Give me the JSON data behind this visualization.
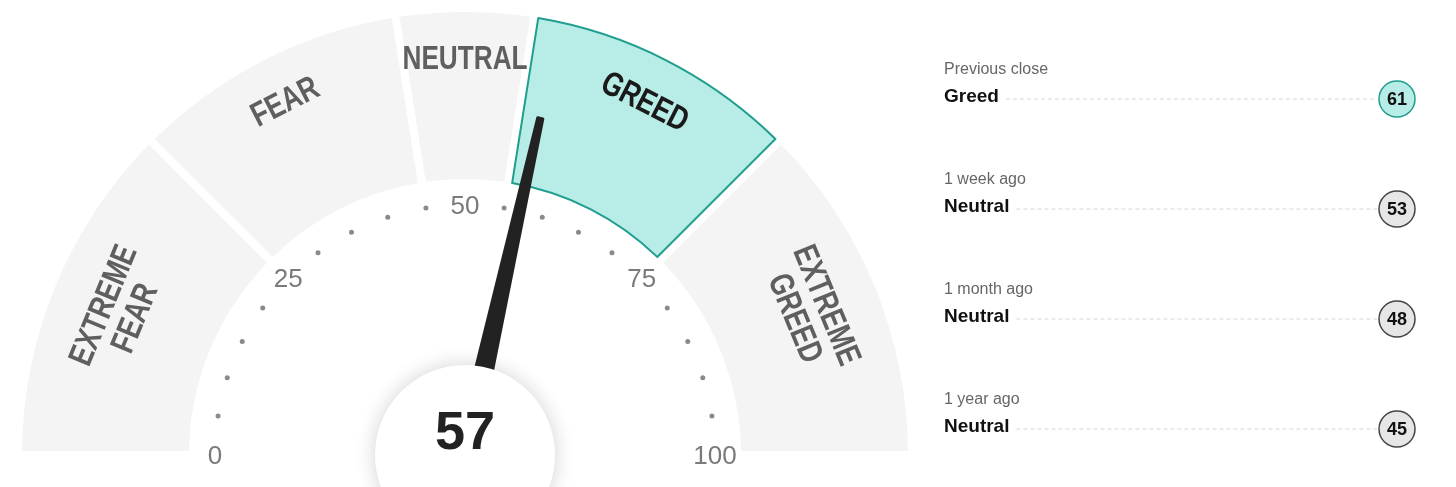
{
  "chart_data": [
    {
      "type": "donut",
      "categories": [
        "EXTREME FEAR",
        "FEAR",
        "NEUTRAL",
        "GREED",
        "EXTREME GREED"
      ],
      "values": [
        25,
        20,
        10,
        20,
        25
      ],
      "colors": [
        "#f4f4f4",
        "#f4f4f4",
        "#f4f4f4",
        "#b8ece6",
        "#f4f4f4"
      ],
      "needle": "GREED",
      "annotations": [
        "57",
        "0",
        "25",
        "50",
        "75",
        "100"
      ]
    },
    {
      "type": "other",
      "categories": [
        "Previous close",
        "1 week ago",
        "1 month ago",
        "1 year ago"
      ],
      "values": [
        61,
        53,
        48,
        45
      ],
      "colors": [
        "#b8ece6",
        "#e6e6e6",
        "#e6e6e6",
        "#e6e6e6"
      ],
      "data_labels": true,
      "annotations": [
        "Greed",
        "Neutral",
        "Neutral",
        "Neutral"
      ]
    }
  ]
}
